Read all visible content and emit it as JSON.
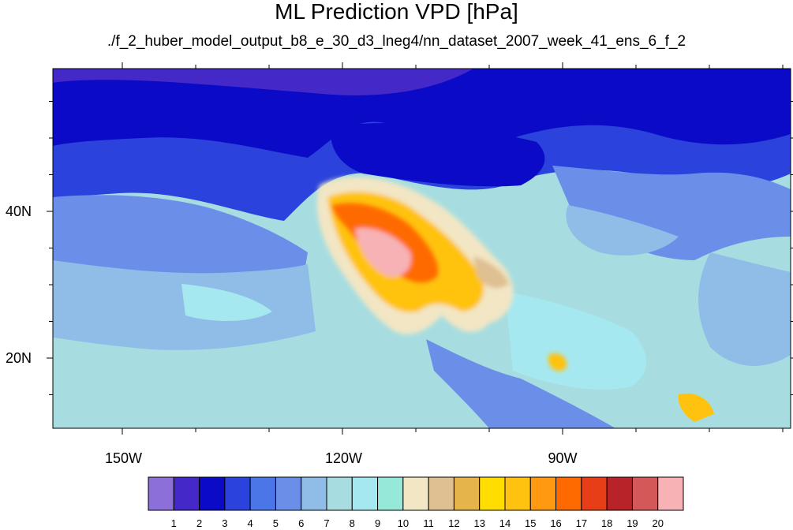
{
  "title": "ML Prediction VPD [hPa]",
  "subtitle": "./f_2_huber_model_output_b8_e_30_d3_lneg4/nn_dataset_2007_week_41_ens_6_f_2",
  "map": {
    "lon_labels": [
      "150W",
      "120W",
      "90W"
    ],
    "lat_labels": [
      "40N",
      "20N"
    ],
    "lon_ticks": [
      150,
      120,
      90
    ],
    "lat_ticks": [
      40,
      20
    ],
    "background_color": "#9fd6dc"
  },
  "colorbar": {
    "colors": [
      "#8c6fd9",
      "#4428c8",
      "#0a0ac7",
      "#2b43dc",
      "#4a76e8",
      "#6b8fe9",
      "#8fbde7",
      "#a7dde0",
      "#a6e8f0",
      "#96e9d8",
      "#f2e6c4",
      "#dfc092",
      "#e5b44a",
      "#ffdd00",
      "#ffc20e",
      "#ff9a10",
      "#ff6a00",
      "#e83e17",
      "#b8232a",
      "#d45858",
      "#f7b2b6"
    ],
    "labels": [
      "1",
      "2",
      "3",
      "4",
      "5",
      "6",
      "7",
      "8",
      "9",
      "10",
      "11",
      "12",
      "13",
      "14",
      "15",
      "16",
      "17",
      "18",
      "19",
      "20"
    ]
  }
}
